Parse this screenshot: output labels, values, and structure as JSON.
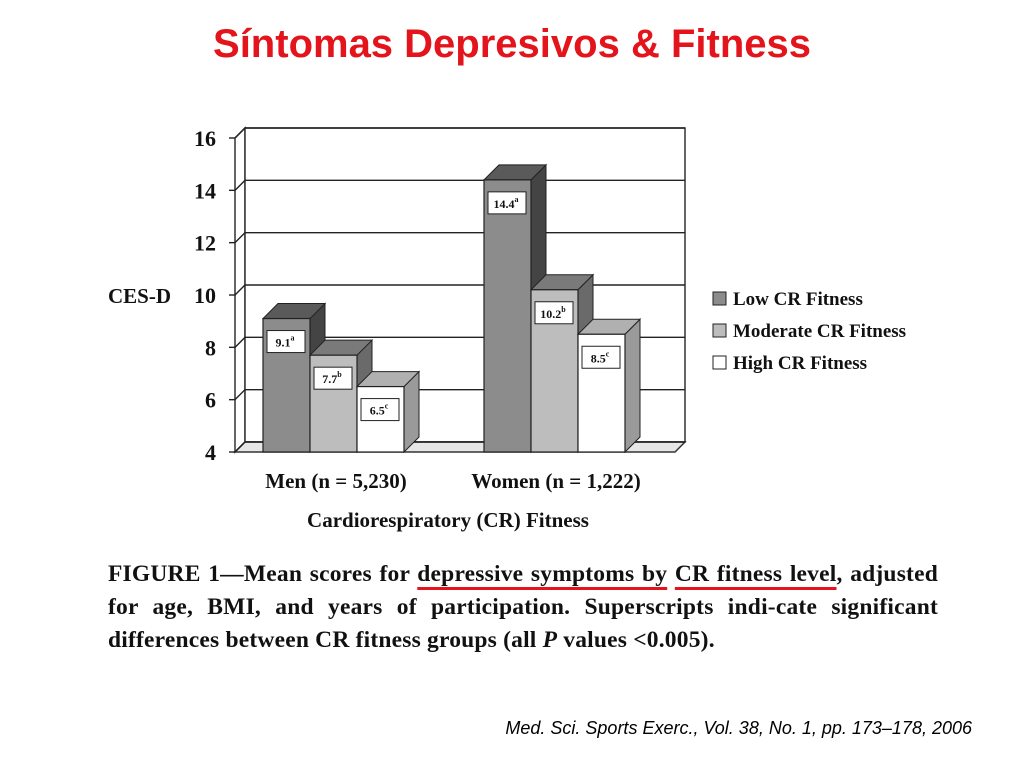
{
  "slide": {
    "title": "Síntomas Depresivos & Fitness",
    "citation": "Med. Sci. Sports Exerc., Vol. 38, No. 1, pp. 173–178, 2006"
  },
  "caption": {
    "prefix": "FIGURE 1—Mean scores for ",
    "highlight1": "depressive symptoms by",
    "space": " ",
    "highlight2": "CR fitness level",
    "suffix_a": ", adjusted for age, BMI, and years of participation. Superscripts indi-cate significant differences between CR fitness groups (all ",
    "p": "P",
    "suffix_b": " values <0.005)."
  },
  "colors": {
    "title": "#e3141b",
    "low": "#8c8c8c",
    "moderate": "#bdbdbd",
    "high": "#ffffff",
    "underline": "#e3141b"
  },
  "chart_data": {
    "type": "bar",
    "style": "3d",
    "categories": [
      "Men (n = 5,230)",
      "Women (n = 1,222)"
    ],
    "series": [
      {
        "name": "Low CR Fitness",
        "values": [
          9.1,
          14.4
        ],
        "labels": [
          "9.1",
          "14.4"
        ],
        "superscripts": [
          "a",
          "a"
        ]
      },
      {
        "name": "Moderate CR Fitness",
        "values": [
          7.7,
          10.2
        ],
        "labels": [
          "7.7",
          "10.2"
        ],
        "superscripts": [
          "b",
          "b"
        ]
      },
      {
        "name": "High CR Fitness",
        "values": [
          6.5,
          8.5
        ],
        "labels": [
          "6.5",
          "8.5"
        ],
        "superscripts": [
          "c",
          "c"
        ]
      }
    ],
    "yticks": [
      "4",
      "6",
      "8",
      "10",
      "12",
      "14",
      "16"
    ],
    "ylim": [
      4,
      16
    ],
    "ylabel": "CES-D",
    "xlabel": "Cardiorespiratory (CR) Fitness",
    "grid": true,
    "legend": "right"
  }
}
